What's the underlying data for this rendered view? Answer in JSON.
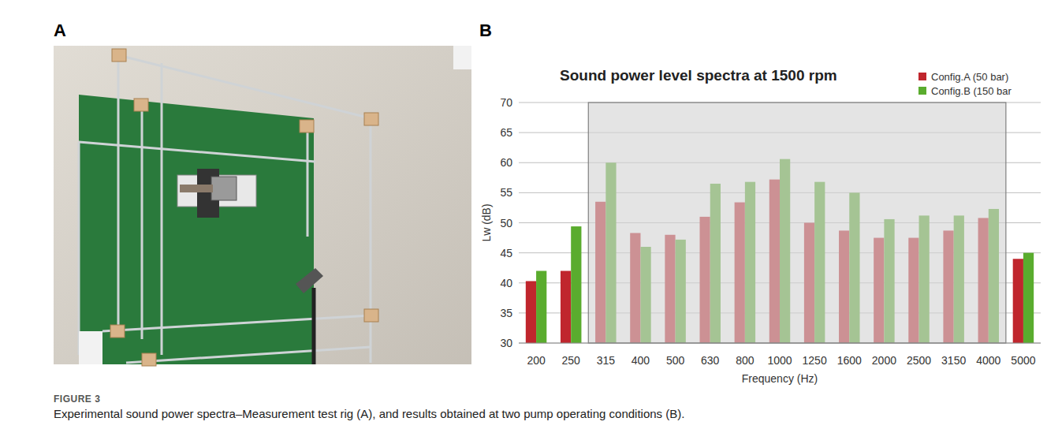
{
  "chart_data": {
    "type": "bar",
    "title": "Sound power level spectra at 1500 rpm",
    "x_label": "Frequency (Hz)",
    "y_label": "Lw (dB)",
    "categories": [
      "200",
      "250",
      "315",
      "400",
      "500",
      "630",
      "800",
      "1000",
      "1250",
      "1600",
      "2000",
      "2500",
      "3150",
      "4000",
      "5000"
    ],
    "series": [
      {
        "name": "Config.A (50 bar)",
        "color": "#c0262d",
        "values": [
          40.3,
          42,
          53.5,
          48.3,
          48,
          51,
          53.4,
          57.2,
          50,
          48.7,
          47.5,
          47.5,
          48.7,
          50.8,
          44
        ]
      },
      {
        "name": "Config.B (150 bar",
        "color": "#5aac2e",
        "values": [
          42,
          49.4,
          60,
          46,
          47.2,
          56.5,
          56.8,
          60.6,
          56.8,
          55,
          50.6,
          51.2,
          51.2,
          52.3,
          45
        ]
      }
    ],
    "shaded": [
      "315",
      "4000"
    ],
    "ylim": [
      30,
      70
    ],
    "yticks": [
      30,
      35,
      40,
      45,
      50,
      55,
      60,
      65,
      70
    ],
    "grid": true,
    "legend": "top-right"
  },
  "figure": {
    "label": "FIGURE 3",
    "caption": "Experimental sound power spectra–Measurement test rig (A), and results obtained at two pump operating conditions (B).",
    "panels": [
      "A",
      "B"
    ]
  }
}
